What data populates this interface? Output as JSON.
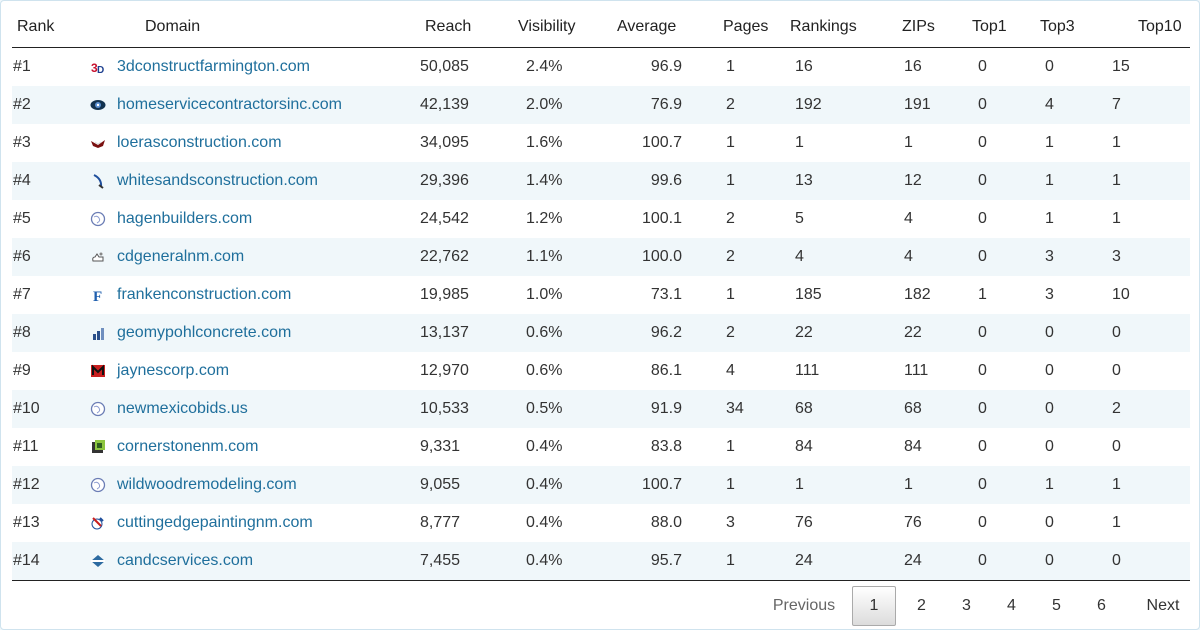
{
  "table": {
    "headers": [
      "Rank",
      "Domain",
      "Reach",
      "Visibility",
      "Average",
      "Pages",
      "Rankings",
      "ZIPs",
      "Top1",
      "Top3",
      "Top10"
    ],
    "rows": [
      {
        "rank": "#1",
        "domain": "3dconstructfarmington.com",
        "icon": "3d-logo-icon",
        "reach": "50,085",
        "visibility": "2.4%",
        "average": "96.9",
        "pages": "1",
        "rankings": "16",
        "zips": "16",
        "top1": "0",
        "top3": "0",
        "top10": "15"
      },
      {
        "rank": "#2",
        "domain": "homeservicecontractorsinc.com",
        "icon": "globe-dark-icon",
        "reach": "42,139",
        "visibility": "2.0%",
        "average": "76.9",
        "pages": "2",
        "rankings": "192",
        "zips": "191",
        "top1": "0",
        "top3": "4",
        "top10": "7"
      },
      {
        "rank": "#3",
        "domain": "loerasconstruction.com",
        "icon": "logo-red-icon",
        "reach": "34,095",
        "visibility": "1.6%",
        "average": "100.7",
        "pages": "1",
        "rankings": "1",
        "zips": "1",
        "top1": "0",
        "top3": "1",
        "top10": "1"
      },
      {
        "rank": "#4",
        "domain": "whitesandsconstruction.com",
        "icon": "swoosh-icon",
        "reach": "29,396",
        "visibility": "1.4%",
        "average": "99.6",
        "pages": "1",
        "rankings": "13",
        "zips": "12",
        "top1": "0",
        "top3": "1",
        "top10": "1"
      },
      {
        "rank": "#5",
        "domain": "hagenbuilders.com",
        "icon": "globe-icon",
        "reach": "24,542",
        "visibility": "1.2%",
        "average": "100.1",
        "pages": "2",
        "rankings": "5",
        "zips": "4",
        "top1": "0",
        "top3": "1",
        "top10": "1"
      },
      {
        "rank": "#6",
        "domain": "cdgeneralnm.com",
        "icon": "hand-icon",
        "reach": "22,762",
        "visibility": "1.1%",
        "average": "100.0",
        "pages": "2",
        "rankings": "4",
        "zips": "4",
        "top1": "0",
        "top3": "3",
        "top10": "3"
      },
      {
        "rank": "#7",
        "domain": "frankenconstruction.com",
        "icon": "f-letter-icon",
        "reach": "19,985",
        "visibility": "1.0%",
        "average": "73.1",
        "pages": "1",
        "rankings": "185",
        "zips": "182",
        "top1": "1",
        "top3": "3",
        "top10": "10"
      },
      {
        "rank": "#8",
        "domain": "geomypohlconcrete.com",
        "icon": "bars-icon",
        "reach": "13,137",
        "visibility": "0.6%",
        "average": "96.2",
        "pages": "2",
        "rankings": "22",
        "zips": "22",
        "top1": "0",
        "top3": "0",
        "top10": "0"
      },
      {
        "rank": "#9",
        "domain": "jaynescorp.com",
        "icon": "m-logo-icon",
        "reach": "12,970",
        "visibility": "0.6%",
        "average": "86.1",
        "pages": "4",
        "rankings": "111",
        "zips": "111",
        "top1": "0",
        "top3": "0",
        "top10": "0"
      },
      {
        "rank": "#10",
        "domain": "newmexicobids.us",
        "icon": "globe-icon",
        "reach": "10,533",
        "visibility": "0.5%",
        "average": "91.9",
        "pages": "34",
        "rankings": "68",
        "zips": "68",
        "top1": "0",
        "top3": "0",
        "top10": "2"
      },
      {
        "rank": "#11",
        "domain": "cornerstonenm.com",
        "icon": "cube-icon",
        "reach": "9,331",
        "visibility": "0.4%",
        "average": "83.8",
        "pages": "1",
        "rankings": "84",
        "zips": "84",
        "top1": "0",
        "top3": "0",
        "top10": "0"
      },
      {
        "rank": "#12",
        "domain": "wildwoodremodeling.com",
        "icon": "globe-icon",
        "reach": "9,055",
        "visibility": "0.4%",
        "average": "100.7",
        "pages": "1",
        "rankings": "1",
        "zips": "1",
        "top1": "0",
        "top3": "1",
        "top10": "1"
      },
      {
        "rank": "#13",
        "domain": "cuttingedgepaintingnm.com",
        "icon": "brush-icon",
        "reach": "8,777",
        "visibility": "0.4%",
        "average": "88.0",
        "pages": "3",
        "rankings": "76",
        "zips": "76",
        "top1": "0",
        "top3": "0",
        "top10": "1"
      },
      {
        "rank": "#14",
        "domain": "candcservices.com",
        "icon": "diamond-logo-icon",
        "reach": "7,455",
        "visibility": "0.4%",
        "average": "95.7",
        "pages": "1",
        "rankings": "24",
        "zips": "24",
        "top1": "0",
        "top3": "0",
        "top10": "0"
      }
    ]
  },
  "pagination": {
    "previous": "Previous",
    "pages": [
      "1",
      "2",
      "3",
      "4",
      "5",
      "6"
    ],
    "current": "1",
    "next": "Next"
  },
  "colors": {
    "link": "#1f6f9c",
    "row_alt": "#f0f7fa",
    "border": "#222222"
  }
}
